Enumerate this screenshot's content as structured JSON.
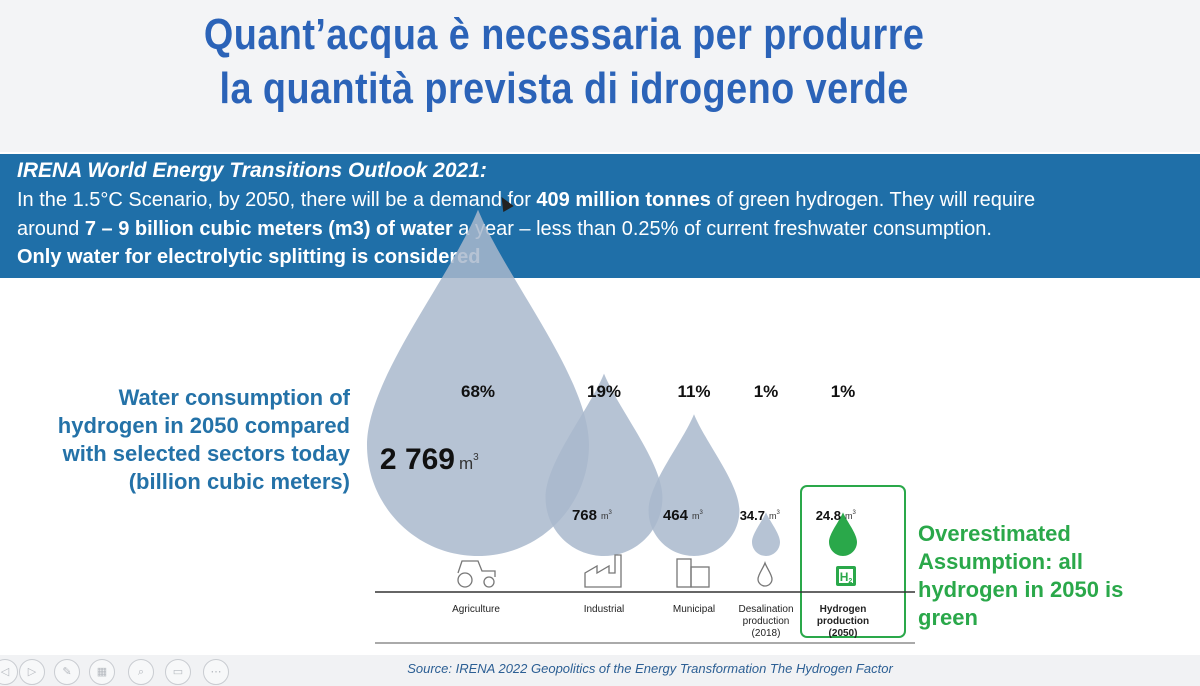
{
  "title": {
    "line1": "Quant’acqua è necessaria per produrre",
    "line2": "la quantità prevista di idrogeno verde"
  },
  "banner": {
    "heading": "IRENA World Energy Transitions Outlook 2021:",
    "line1_a": "In the 1.5°C Scenario, by 2050, there will be a demand for ",
    "line1_b": "409 million tonnes",
    "line1_c": " of green hydrogen. They will require",
    "line2_a": "around ",
    "line2_b": "7 – 9 billion cubic meters (m3) of water",
    "line2_c": " a year – less than 0.25% of current freshwater consumption.",
    "line3": "Only water for electrolytic  splitting is considered"
  },
  "side_label": "Water consumption of hydrogen in 2050 compared with selected sectors today (billion cubic meters)",
  "note": "Overestimated Assumption: all hydrogen in 2050 is green",
  "source": "Source: IRENA 2022 Geopolitics of the Energy Transformation The Hydrogen Factor",
  "colors": {
    "drop": "#a9b9cc",
    "hydrogen": "#2aa84a",
    "banner": "#1f6fa8",
    "title": "#2b63b8"
  },
  "chart_data": {
    "type": "bubble",
    "categories": [
      "Agriculture",
      "Industrial",
      "Municipal",
      "Desalination production (2018)",
      "Hydrogen production (2050)"
    ],
    "category_lines": [
      [
        "Agriculture"
      ],
      [
        "Industrial"
      ],
      [
        "Municipal"
      ],
      [
        "Desalination",
        "production",
        "(2018)"
      ],
      [
        "Hydrogen",
        "production",
        "(2050)"
      ]
    ],
    "values": [
      2769,
      768,
      464,
      34.7,
      24.8
    ],
    "value_labels": [
      "2 769",
      "768",
      "464",
      "34.7",
      "24.8"
    ],
    "unit": "m3",
    "shares": [
      "68%",
      "19%",
      "11%",
      "1%",
      "1%"
    ],
    "icons": [
      "tractor-icon",
      "factory-icon",
      "buildings-icon",
      "droplet-outline-icon",
      "h2-icon"
    ],
    "highlighted": "Hydrogen production (2050)"
  }
}
